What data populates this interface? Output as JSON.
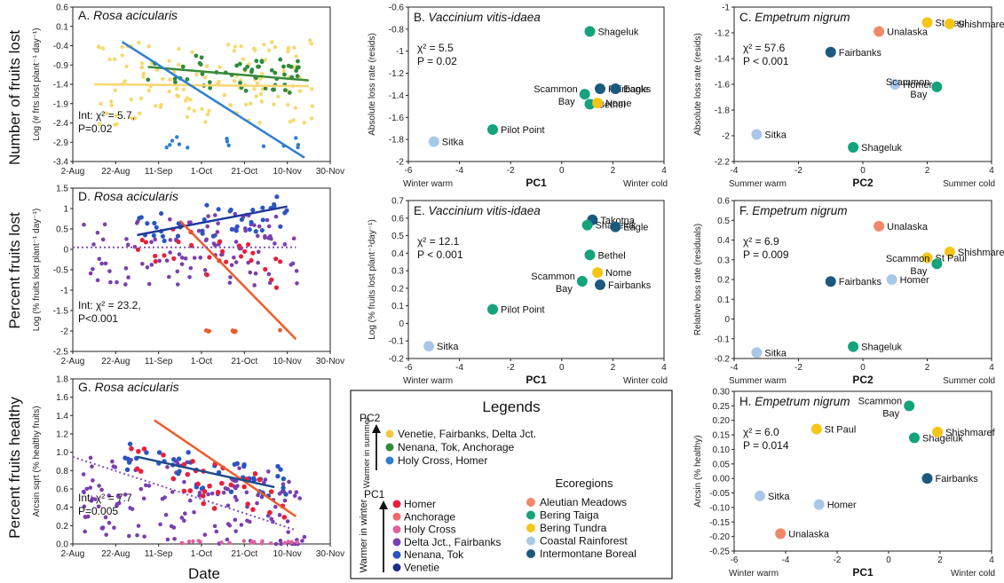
{
  "colors": {
    "pc2_warm": "#f5c842",
    "pc2_mid": "#2e8b3a",
    "pc2_cool": "#2f7fd0",
    "pc1_homer": "#e8203a",
    "pc1_anchorage": "#f06a6a",
    "pc1_holy": "#e060a0",
    "pc1_delta": "#7a3fb0",
    "pc1_nenana": "#2b56c0",
    "pc1_venetie": "#1a2f8a",
    "eco_aleutian": "#f2876a",
    "eco_taiga": "#14a37a",
    "eco_tundra": "#f5c518",
    "eco_rainforest": "#a9c8e8",
    "eco_boreal": "#1b5a7e",
    "line_blue": "#2f7fd0",
    "line_yellow": "#f7d870",
    "line_green": "#3a8a3a",
    "line_orange": "#f05a28",
    "line_navy": "#1f3a9a",
    "line_purple": "#8050c0",
    "line_darkblue": "#1f4a8a"
  },
  "row_labels": [
    "Number of fruits lost",
    "Percent fruits lost",
    "Percent fruits healthy"
  ],
  "date_label": "Date",
  "legend": {
    "title": "Legends",
    "pc2_label": "PC2",
    "pc2_arrow": "Warmer in summer",
    "pc2_items": [
      {
        "label": "Venetie, Fairbanks, Delta Jct.",
        "color": "#f5c842"
      },
      {
        "label": "Nenana, Tok, Anchorage",
        "color": "#2e8b3a"
      },
      {
        "label": "Holy Cross, Homer",
        "color": "#2f7fd0"
      }
    ],
    "pc1_label": "PC1",
    "pc1_arrow": "Warmer in winter",
    "pc1_items": [
      {
        "label": "Homer",
        "color": "#e8203a"
      },
      {
        "label": "Anchorage",
        "color": "#f06a6a"
      },
      {
        "label": "Holy Cross",
        "color": "#e060a0"
      },
      {
        "label": "Delta Jct., Fairbanks",
        "color": "#7a3fb0"
      },
      {
        "label": "Nenana, Tok",
        "color": "#2b56c0"
      },
      {
        "label": "Venetie",
        "color": "#1a2f8a"
      }
    ],
    "eco_title": "Ecoregions",
    "eco_items": [
      {
        "label": "Aleutian Meadows",
        "color": "#f2876a"
      },
      {
        "label": "Bering Taiga",
        "color": "#14a37a"
      },
      {
        "label": "Bering Tundra",
        "color": "#f5c518"
      },
      {
        "label": "Coastal Rainforest",
        "color": "#a9c8e8"
      },
      {
        "label": "Intermontane Boreal",
        "color": "#1b5a7e"
      }
    ]
  },
  "chart_data": [
    {
      "id": "A",
      "type": "scatter",
      "title": "A. Rosa acicularis",
      "ylabel": "Log (# frts lost plant⁻¹ day⁻¹)",
      "x_ticks": [
        "2-Aug",
        "22-Aug",
        "11-Sep",
        "1-Oct",
        "21-Oct",
        "10-Nov",
        "30-Nov"
      ],
      "xlim": [
        0,
        120
      ],
      "ylim": [
        -3.4,
        0.6
      ],
      "y_ticks": [
        "0.6",
        "0.1",
        "-0.4",
        "-0.9",
        "-1.4",
        "-1.9",
        "-2.4",
        "-2.9",
        "-3.4"
      ],
      "stat": "Int: χ² = 5.7,",
      "p": "P=0.02",
      "series": [
        {
          "color_key": "line_yellow",
          "line": [
            [
              10,
              -1.4
            ],
            [
              110,
              -1.45
            ]
          ]
        },
        {
          "color_key": "line_green",
          "line": [
            [
              35,
              -0.95
            ],
            [
              110,
              -1.3
            ]
          ]
        },
        {
          "color_key": "line_blue",
          "line": [
            [
              23,
              -0.3
            ],
            [
              108,
              -3.3
            ]
          ]
        }
      ]
    },
    {
      "id": "D",
      "type": "scatter",
      "title": "D. Rosa acicularis",
      "ylabel": "Log (% fruits lost plant⁻¹ day⁻¹)",
      "x_ticks": [
        "2-Aug",
        "22-Aug",
        "11-Sep",
        "1-Oct",
        "21-Oct",
        "10-Nov",
        "30-Nov"
      ],
      "xlim": [
        0,
        120
      ],
      "ylim": [
        -2.5,
        1.5
      ],
      "y_ticks": [
        "1.5",
        "1",
        "0.5",
        "0",
        "-0.5",
        "-1",
        "-1.5",
        "-2",
        "-2.5"
      ],
      "stat": "Int: χ² = 23.2,",
      "p": "P<0.001",
      "series": [
        {
          "color_key": "line_navy",
          "line": [
            [
              30,
              0.35
            ],
            [
              100,
              1.05
            ]
          ]
        },
        {
          "color_key": "line_orange",
          "line": [
            [
              50,
              0.7
            ],
            [
              104,
              -2.2
            ]
          ]
        },
        {
          "color_key": "line_purple",
          "dotted": true,
          "line": [
            [
              0,
              0.05
            ],
            [
              104,
              0.05
            ]
          ]
        }
      ]
    },
    {
      "id": "G",
      "type": "scatter",
      "title": "G. Rosa acicularis",
      "ylabel": "Arcsin sqrt (% healthy fruits)",
      "x_ticks": [
        "2-Aug",
        "22-Aug",
        "11-Sep",
        "1-Oct",
        "21-Oct",
        "10-Nov",
        "30-Nov"
      ],
      "xlim": [
        0,
        120
      ],
      "ylim": [
        0,
        1.8
      ],
      "y_ticks": [
        "1.8",
        "1.6",
        "1.4",
        "1.2",
        "1.0",
        "0.8",
        "0.6",
        "0.4",
        "0.2",
        "0.0"
      ],
      "stat": "Int: χ² = 7.7",
      "p": "P=0.005",
      "series": [
        {
          "color_key": "line_orange",
          "line": [
            [
              38,
              1.35
            ],
            [
              104,
              0.3
            ]
          ]
        },
        {
          "color_key": "line_darkblue",
          "line": [
            [
              30,
              0.95
            ],
            [
              94,
              0.62
            ]
          ]
        },
        {
          "color_key": "line_purple",
          "dotted": true,
          "line": [
            [
              0,
              0.95
            ],
            [
              104,
              0.15
            ]
          ]
        }
      ]
    },
    {
      "id": "B",
      "type": "scatter",
      "title": "B. Vaccinium vitis-idaea",
      "ylabel": "Absolute loss rate (resids)",
      "xlabel": "PC1",
      "x_left": "Winter warm",
      "x_right": "Winter cold",
      "xlim": [
        -6,
        4
      ],
      "ylim": [
        -2,
        -0.6
      ],
      "x_ticks": [
        "-6",
        "-4",
        "-2",
        "0",
        "2",
        "4"
      ],
      "y_ticks": [
        "-0.6",
        "-0.8",
        "-1",
        "-1.2",
        "-1.4",
        "-1.6",
        "-1.8",
        "-2"
      ],
      "stat": "χ² = 5.5",
      "p": "P = 0.02",
      "points": [
        {
          "label": "Shageluk",
          "x": 1.1,
          "y": -0.82,
          "eco": "eco_taiga"
        },
        {
          "label": "Fairbanks",
          "x": 1.5,
          "y": -1.34,
          "eco": "eco_boreal"
        },
        {
          "label": "Eagle",
          "x": 2.1,
          "y": -1.34,
          "eco": "eco_boreal"
        },
        {
          "label": "Scammon Bay",
          "x": 0.9,
          "y": -1.39,
          "eco": "eco_taiga"
        },
        {
          "label": "Bethel",
          "x": 1.1,
          "y": -1.48,
          "eco": "eco_taiga"
        },
        {
          "label": "Nome",
          "x": 1.4,
          "y": -1.47,
          "eco": "eco_tundra"
        },
        {
          "label": "Pilot Point",
          "x": -2.7,
          "y": -1.71,
          "eco": "eco_taiga"
        },
        {
          "label": "Sitka",
          "x": -5.0,
          "y": -1.82,
          "eco": "eco_rainforest"
        }
      ]
    },
    {
      "id": "E",
      "type": "scatter",
      "title": "E. Vaccinium vitis-idaea",
      "ylabel": "Log (% fruits lost plant⁻¹day⁻¹)",
      "xlabel": "PC1",
      "x_left": "Winter warm",
      "x_right": "Winter cold",
      "xlim": [
        -6,
        4
      ],
      "ylim": [
        -0.2,
        0.7
      ],
      "x_ticks": [
        "-6",
        "-4",
        "-2",
        "0",
        "2",
        "4"
      ],
      "y_ticks": [
        "0.7",
        "0.6",
        "0.5",
        "0.4",
        "0.3",
        "0.2",
        "0.1",
        "0",
        "-0.1",
        "-0.2"
      ],
      "stat": "χ² = 12.1",
      "p": "P < 0.001",
      "points": [
        {
          "label": "Takotna",
          "x": 1.2,
          "y": 0.59,
          "eco": "eco_boreal"
        },
        {
          "label": "Shageluk",
          "x": 1.0,
          "y": 0.56,
          "eco": "eco_taiga"
        },
        {
          "label": "Eagle",
          "x": 2.1,
          "y": 0.55,
          "eco": "eco_boreal"
        },
        {
          "label": "Bethel",
          "x": 1.1,
          "y": 0.39,
          "eco": "eco_taiga"
        },
        {
          "label": "Nome",
          "x": 1.4,
          "y": 0.29,
          "eco": "eco_tundra"
        },
        {
          "label": "Scammon Bay",
          "x": 0.8,
          "y": 0.24,
          "eco": "eco_taiga"
        },
        {
          "label": "Fairbanks",
          "x": 1.5,
          "y": 0.22,
          "eco": "eco_boreal"
        },
        {
          "label": "Pilot Point",
          "x": -2.7,
          "y": 0.08,
          "eco": "eco_taiga"
        },
        {
          "label": "Sitka",
          "x": -5.2,
          "y": -0.13,
          "eco": "eco_rainforest"
        }
      ]
    },
    {
      "id": "C",
      "type": "scatter",
      "title": "C. Empetrum nigrum",
      "ylabel": "Absolute loss rate (resids)",
      "xlabel": "PC2",
      "x_left": "Summer warm",
      "x_right": "Summer cold",
      "xlim": [
        -4,
        4
      ],
      "ylim": [
        -2.2,
        -1
      ],
      "x_ticks": [
        "-4",
        "-2",
        "0",
        "2",
        "4"
      ],
      "y_ticks": [
        "-1",
        "-1.2",
        "-1.4",
        "-1.6",
        "-1.8",
        "-2",
        "-2.2"
      ],
      "stat": "χ² = 57.6",
      "p": "P < 0.001",
      "points": [
        {
          "label": "Unalaska",
          "x": 0.5,
          "y": -1.19,
          "eco": "eco_aleutian"
        },
        {
          "label": "St Paul",
          "x": 2.0,
          "y": -1.12,
          "eco": "eco_tundra"
        },
        {
          "label": "Shishmaref",
          "x": 2.7,
          "y": -1.13,
          "eco": "eco_tundra"
        },
        {
          "label": "Fairbanks",
          "x": -1.0,
          "y": -1.35,
          "eco": "eco_boreal"
        },
        {
          "label": "Homer",
          "x": 1.0,
          "y": -1.6,
          "eco": "eco_rainforest"
        },
        {
          "label": "Scammon Bay",
          "x": 2.3,
          "y": -1.62,
          "eco": "eco_taiga"
        },
        {
          "label": "Shageluk",
          "x": -0.3,
          "y": -2.09,
          "eco": "eco_taiga"
        },
        {
          "label": "Sitka",
          "x": -3.3,
          "y": -1.99,
          "eco": "eco_rainforest"
        }
      ]
    },
    {
      "id": "F",
      "type": "scatter",
      "title": "F. Empetrum nigrum",
      "ylabel": "Relative loss rate (residuals)",
      "xlabel": "PC2",
      "x_left": "Summer warm",
      "x_right": "Summer cold",
      "xlim": [
        -4,
        4
      ],
      "ylim": [
        -0.2,
        0.6
      ],
      "x_ticks": [
        "-4",
        "-2",
        "0",
        "2",
        "4"
      ],
      "y_ticks": [
        "0.6",
        "0.5",
        "0.4",
        "0.3",
        "0.2",
        "0.1",
        "0",
        "-0.1",
        "-0.2"
      ],
      "stat": "χ² = 6.9",
      "p": "P = 0.009",
      "points": [
        {
          "label": "Unalaska",
          "x": 0.5,
          "y": 0.47,
          "eco": "eco_aleutian"
        },
        {
          "label": "Shishmaref",
          "x": 2.7,
          "y": 0.34,
          "eco": "eco_tundra"
        },
        {
          "label": "St Paul",
          "x": 2.0,
          "y": 0.31,
          "eco": "eco_tundra"
        },
        {
          "label": "Scammon Bay",
          "x": 2.3,
          "y": 0.28,
          "eco": "eco_taiga"
        },
        {
          "label": "Fairbanks",
          "x": -1.0,
          "y": 0.19,
          "eco": "eco_boreal"
        },
        {
          "label": "Homer",
          "x": 0.9,
          "y": 0.2,
          "eco": "eco_rainforest"
        },
        {
          "label": "Shageluk",
          "x": -0.3,
          "y": -0.14,
          "eco": "eco_taiga"
        },
        {
          "label": "Sitka",
          "x": -3.3,
          "y": -0.17,
          "eco": "eco_rainforest"
        }
      ]
    },
    {
      "id": "H",
      "type": "scatter",
      "title": "H. Empetrum nigrum",
      "ylabel": "Arcsin (% healthy)",
      "xlabel": "PC1",
      "x_left": "Winter warm",
      "x_right": "Winter cold",
      "xlim": [
        -6,
        4
      ],
      "ylim": [
        -0.25,
        0.3
      ],
      "x_ticks": [
        "-6",
        "-4",
        "-2",
        "0",
        "2",
        "4"
      ],
      "y_ticks": [
        "0.30",
        "0.25",
        "0.20",
        "0.15",
        "0.10",
        "0.05",
        "0.00",
        "-0.05",
        "-0.10",
        "-0.15",
        "-0.20",
        "-0.25"
      ],
      "stat": "χ² = 6.0",
      "p": "P = 0.014",
      "points": [
        {
          "label": "Scammon Bay",
          "x": 0.8,
          "y": 0.25,
          "eco": "eco_taiga"
        },
        {
          "label": "St Paul",
          "x": -2.8,
          "y": 0.17,
          "eco": "eco_tundra"
        },
        {
          "label": "Shageluk",
          "x": 1.0,
          "y": 0.14,
          "eco": "eco_taiga"
        },
        {
          "label": "Shishmaref",
          "x": 1.9,
          "y": 0.16,
          "eco": "eco_tundra"
        },
        {
          "label": "Fairbanks",
          "x": 1.5,
          "y": 0.0,
          "eco": "eco_boreal"
        },
        {
          "label": "Sitka",
          "x": -5.0,
          "y": -0.06,
          "eco": "eco_rainforest"
        },
        {
          "label": "Homer",
          "x": -2.7,
          "y": -0.09,
          "eco": "eco_rainforest"
        },
        {
          "label": "Unalaska",
          "x": -4.2,
          "y": -0.19,
          "eco": "eco_aleutian"
        }
      ]
    }
  ]
}
